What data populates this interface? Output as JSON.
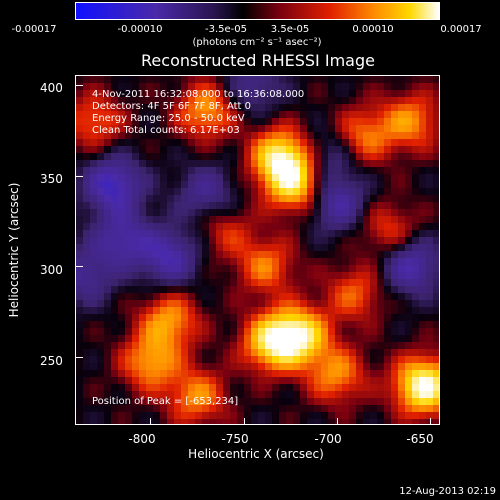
{
  "colorbar": {
    "ticks": [
      "-0.00017",
      "-0.00010",
      "-3.5e-05",
      "3.5e-05",
      "0.00010",
      "0.00017"
    ],
    "units": "(photons cm⁻² s⁻¹ asec⁻²)"
  },
  "chart_data": {
    "type": "heatmap",
    "title": "Reconstructed RHESSI Image",
    "xlabel": "Heliocentric X (arcsec)",
    "ylabel": "Heliocentric Y (arcsec)",
    "xlim": [
      -840,
      -645
    ],
    "ylim": [
      213,
      405
    ],
    "x_ticks": [
      "-800",
      "-750",
      "-700",
      "-650"
    ],
    "y_ticks": [
      "250",
      "300",
      "350",
      "400"
    ],
    "x_tick_values": [
      -800,
      -750,
      -700,
      -650
    ],
    "y_tick_values": [
      250,
      300,
      350,
      400
    ],
    "colorscale": "rhessi-blue-purple-red-yellow-white",
    "vmin": -0.00017,
    "vmax": 0.00017,
    "sources": [
      {
        "x": -653,
        "y": 234,
        "amp": 1.0
      },
      {
        "x": -770,
        "y": 386,
        "amp": 0.55
      },
      {
        "x": -730,
        "y": 360,
        "amp": 0.85
      },
      {
        "x": -722,
        "y": 345,
        "amp": 0.7
      },
      {
        "x": -738,
        "y": 300,
        "amp": 0.45
      },
      {
        "x": -735,
        "y": 258,
        "amp": 0.75
      },
      {
        "x": -720,
        "y": 262,
        "amp": 0.8
      },
      {
        "x": -790,
        "y": 270,
        "amp": 0.55
      },
      {
        "x": -800,
        "y": 247,
        "amp": 0.55
      },
      {
        "x": -775,
        "y": 228,
        "amp": 0.5
      },
      {
        "x": -830,
        "y": 380,
        "amp": 0.4
      },
      {
        "x": -685,
        "y": 372,
        "amp": 0.45
      },
      {
        "x": -660,
        "y": 380,
        "amp": 0.5
      },
      {
        "x": -672,
        "y": 320,
        "amp": 0.35
      },
      {
        "x": -690,
        "y": 285,
        "amp": 0.4
      },
      {
        "x": -700,
        "y": 240,
        "amp": 0.5
      },
      {
        "x": -760,
        "y": 320,
        "amp": 0.3
      }
    ],
    "troughs": [
      {
        "x": -820,
        "y": 345,
        "amp": -0.65
      },
      {
        "x": -815,
        "y": 315,
        "amp": -0.5
      },
      {
        "x": -790,
        "y": 305,
        "amp": -0.55
      },
      {
        "x": -770,
        "y": 340,
        "amp": -0.4
      },
      {
        "x": -745,
        "y": 400,
        "amp": -0.35
      },
      {
        "x": -700,
        "y": 335,
        "amp": -0.5
      },
      {
        "x": -660,
        "y": 300,
        "amp": -0.55
      },
      {
        "x": -705,
        "y": 360,
        "amp": -0.3
      },
      {
        "x": -835,
        "y": 295,
        "amp": -0.4
      }
    ]
  },
  "annotations": {
    "time": "4-Nov-2011 16:32:08.000 to 16:36:08.000",
    "detectors": "Detectors: 4F 5F 6F 7F 8F, Att 0",
    "energy": "Energy Range: 25.0 - 50.0 keV",
    "clean": "Clean     Total counts: 6.17E+03",
    "peak": "Position of Peak = [-653,234]"
  },
  "footer": {
    "date": "12-Aug-2013 02:19"
  }
}
